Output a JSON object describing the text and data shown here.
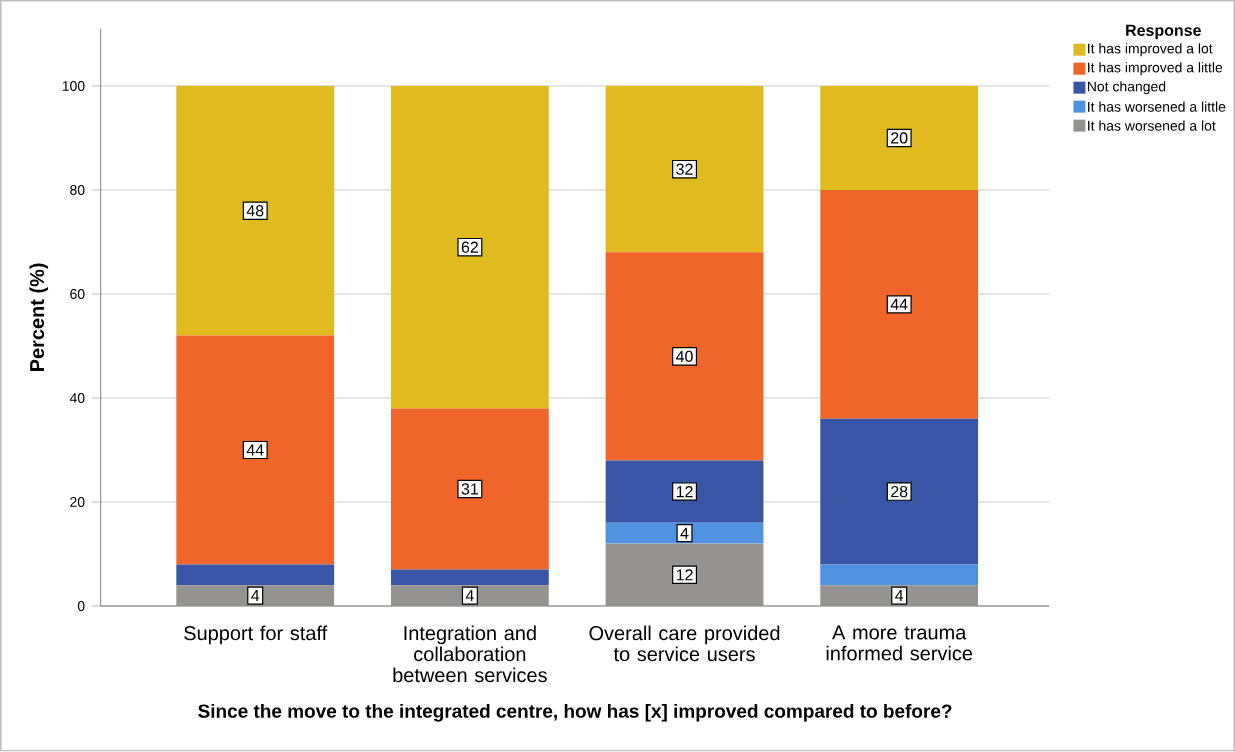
{
  "chart_data": {
    "type": "bar",
    "stacked": true,
    "xlabel": "Since the move to the integrated centre, how has [x] improved compared to before?",
    "ylabel": "Percent (%)",
    "legend_title": "Response",
    "categories": [
      "Support for staff",
      "Integration and collaboration between services",
      "Overall care provided to service users",
      "A more trauma informed service"
    ],
    "series": [
      {
        "name": "It has worsened a lot",
        "color": "#959392",
        "values": [
          4,
          4,
          12,
          4
        ],
        "value_labels": [
          "4",
          "4",
          "12",
          "4"
        ]
      },
      {
        "name": "It has worsened a little",
        "color": "#4f93e0",
        "values": [
          0,
          0,
          4,
          4
        ],
        "value_labels": [
          null,
          null,
          "4",
          null
        ]
      },
      {
        "name": "Not changed",
        "color": "#3a55a5",
        "values": [
          4,
          3,
          12,
          28
        ],
        "value_labels": [
          null,
          null,
          "12",
          "28"
        ]
      },
      {
        "name": "It has improved a little",
        "color": "#f0652a",
        "values": [
          44,
          31,
          40,
          44
        ],
        "value_labels": [
          "44",
          "31",
          "40",
          "44"
        ]
      },
      {
        "name": "It has improved a lot",
        "color": "#dfbb1f",
        "values": [
          48,
          62,
          32,
          20
        ],
        "value_labels": [
          "48",
          "62",
          "32",
          "20"
        ]
      }
    ],
    "ylim": [
      0,
      111
    ],
    "yticks": [
      0,
      20,
      40,
      60,
      80,
      100
    ],
    "grid": "y",
    "legend": "top right"
  }
}
